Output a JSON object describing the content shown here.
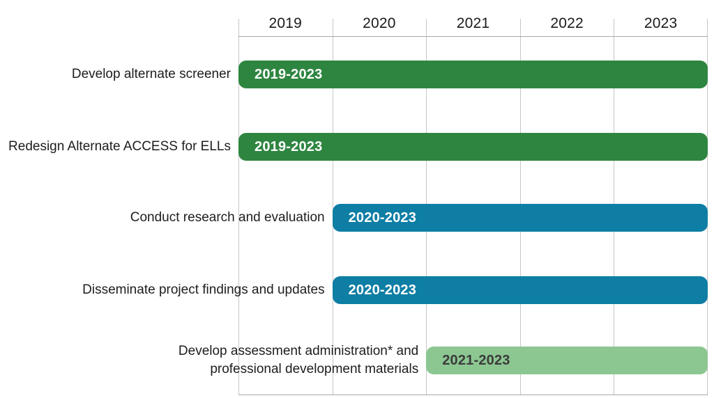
{
  "chart_data": {
    "type": "bar",
    "subtype": "gantt-timeline",
    "title": "",
    "x_axis": {
      "position": "top",
      "labels": [
        "2019",
        "2020",
        "2021",
        "2022",
        "2023"
      ],
      "range_years": [
        2019,
        2023
      ]
    },
    "grid": "vertical-columns-only",
    "legend": "none",
    "tasks": [
      {
        "label": "Develop alternate screener",
        "label_lines": [
          "Develop alternate screener"
        ],
        "bar_label": "2019-2023",
        "start_year": 2019,
        "end_year": 2023,
        "bar_color": "#2e8540",
        "bar_text_color": "#ffffff"
      },
      {
        "label": "Redesign Alternate ACCESS for ELLs",
        "label_lines": [
          "Redesign Alternate ACCESS for ELLs"
        ],
        "bar_label": "2019-2023",
        "start_year": 2019,
        "end_year": 2023,
        "bar_color": "#2e8540",
        "bar_text_color": "#ffffff"
      },
      {
        "label": "Conduct research and evaluation",
        "label_lines": [
          "Conduct research and evaluation"
        ],
        "bar_label": "2020-2023",
        "start_year": 2020,
        "end_year": 2023,
        "bar_color": "#0e7ea4",
        "bar_text_color": "#ffffff"
      },
      {
        "label": "Disseminate project findings and updates",
        "label_lines": [
          "Disseminate project findings and updates"
        ],
        "bar_label": "2020-2023",
        "start_year": 2020,
        "end_year": 2023,
        "bar_color": "#0e7ea4",
        "bar_text_color": "#ffffff"
      },
      {
        "label": "Develop assessment administration* and professional development materials",
        "label_lines": [
          "Develop assessment administration* and",
          "professional development materials"
        ],
        "bar_label": "2021-2023",
        "start_year": 2021,
        "end_year": 2023,
        "bar_color": "#8cc792",
        "bar_text_color": "#3b3b3b"
      }
    ]
  },
  "palette": {
    "background": "#ffffff",
    "dark_green": "#2e8540",
    "teal_blue": "#0e7ea4",
    "light_green": "#8cc792",
    "grid_line": "#c6c6c6",
    "border_line": "#a8a8a8",
    "axis_text": "#1a1a1a",
    "label_text": "#1d1d1d",
    "bar_text_light": "#ffffff",
    "bar_text_dark": "#3b3b3b"
  }
}
